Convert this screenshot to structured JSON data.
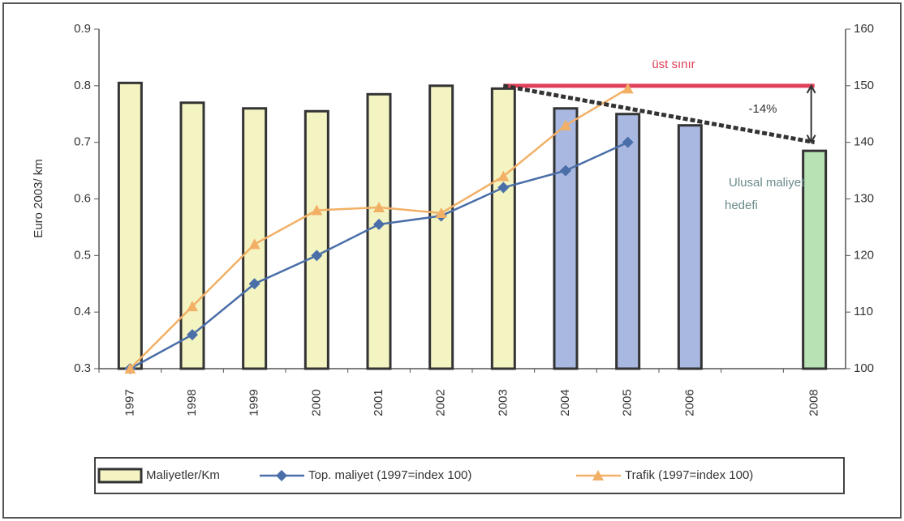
{
  "chart_data": {
    "type": "bar",
    "y_label": "Euro 2003/ km",
    "categories": [
      "1997",
      "1998",
      "1999",
      "2000",
      "2001",
      "2002",
      "2003",
      "2004",
      "2005",
      "2006",
      null,
      "2008"
    ],
    "series": [
      {
        "name": "Maliyetler/Km",
        "type": "bar",
        "color": "#f4f4c2",
        "colors": [
          "#f4f4c2",
          "#f4f4c2",
          "#f4f4c2",
          "#f4f4c2",
          "#f4f4c2",
          "#f4f4c2",
          "#f4f4c2",
          "#a9b8e0",
          "#a9b8e0",
          "#a9b8e0",
          null,
          "#b9e2b4"
        ],
        "values": [
          0.805,
          0.77,
          0.76,
          0.755,
          0.785,
          0.8,
          0.795,
          0.76,
          0.75,
          0.73,
          null,
          0.685
        ]
      },
      {
        "name": "Top. maliyet (1997=index 100)",
        "type": "line",
        "axis": "y2",
        "color": "#4a6ea8",
        "marker": "diamond",
        "values": [
          100,
          106,
          115,
          120,
          125.5,
          127,
          132,
          135,
          140,
          null,
          null,
          null
        ]
      },
      {
        "name": "Trafik (1997=index 100)",
        "type": "line",
        "axis": "y2",
        "color": "#f2b066",
        "marker": "triangle",
        "values": [
          100,
          111,
          122,
          128,
          128.5,
          127.5,
          134,
          143,
          149.5,
          null,
          null,
          null
        ]
      }
    ],
    "upper_limit": {
      "label": "üst sınır",
      "value": 150,
      "color": "#e0405a"
    },
    "target": {
      "label": "Ulusal maliyet hedefi",
      "from": 150,
      "to": 140,
      "change_label": "-14%",
      "color": "#333333"
    },
    "ylim": [
      0.3,
      0.9
    ],
    "yticks": [
      0.3,
      0.4,
      0.5,
      0.6,
      0.7,
      0.8,
      0.9
    ],
    "y2lim": [
      100,
      160
    ],
    "y2ticks": [
      100,
      110,
      120,
      130,
      140,
      150,
      160
    ]
  }
}
